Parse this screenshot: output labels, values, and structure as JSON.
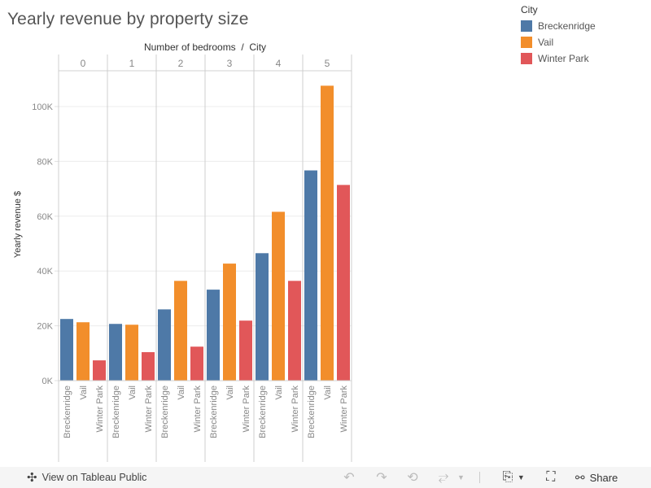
{
  "title": "Yearly revenue by property size",
  "legend": {
    "title": "City",
    "items": [
      {
        "label": "Breckenridge",
        "color": "#4e79a7"
      },
      {
        "label": "Vail",
        "color": "#f28e2b"
      },
      {
        "label": "Winter Park",
        "color": "#e15759"
      }
    ]
  },
  "chart_data": {
    "type": "bar",
    "title": "Yearly revenue by property size",
    "column_header": "Number of bedrooms  /  City",
    "ylabel": "Yearly revenue $",
    "xlabel": "",
    "ylim": [
      0,
      112000
    ],
    "yticks": [
      0,
      20000,
      40000,
      60000,
      80000,
      100000
    ],
    "ytick_labels": [
      "0K",
      "20K",
      "40K",
      "60K",
      "80K",
      "100K"
    ],
    "grid": true,
    "groups": [
      "0",
      "1",
      "2",
      "3",
      "4",
      "5"
    ],
    "categories": [
      "Breckenridge",
      "Vail",
      "Winter Park"
    ],
    "series": [
      {
        "name": "Breckenridge",
        "color": "#4e79a7",
        "values": [
          22500,
          20700,
          26000,
          33200,
          46500,
          76700
        ]
      },
      {
        "name": "Vail",
        "color": "#f28e2b",
        "values": [
          21300,
          20400,
          36400,
          42700,
          61600,
          107600
        ]
      },
      {
        "name": "Winter Park",
        "color": "#e15759",
        "values": [
          7400,
          10400,
          12400,
          21900,
          36400,
          71400
        ]
      }
    ]
  },
  "footer": {
    "view_label": "View on Tableau Public",
    "share_label": "Share"
  }
}
